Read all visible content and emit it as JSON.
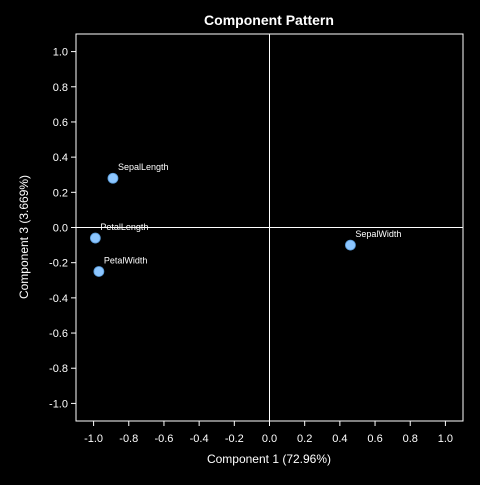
{
  "chart_data": {
    "type": "scatter",
    "title": "Component Pattern",
    "xlabel": "Component 1 (72.96%)",
    "ylabel": "Component 3 (3.669%)",
    "xlim": [
      -1.1,
      1.1
    ],
    "ylim": [
      -1.1,
      1.1
    ],
    "x_ticks": [
      -1.0,
      -0.8,
      -0.6,
      -0.4,
      -0.2,
      0.0,
      0.2,
      0.4,
      0.6,
      0.8,
      1.0
    ],
    "x_tick_labels": [
      "-1.0",
      "-0.8",
      "-0.6",
      "-0.4",
      "-0.2",
      "0.0",
      "0.2",
      "0.4",
      "0.6",
      "0.8",
      "1.0"
    ],
    "y_ticks": [
      1.0,
      0.8,
      0.6,
      0.4,
      0.2,
      0.0,
      -0.2,
      -0.4,
      -0.6,
      -0.8,
      -1.0
    ],
    "y_tick_labels": [
      "1.0",
      "0.8",
      "0.6",
      "0.4",
      "0.2",
      "0.0",
      "-0.2",
      "-0.4",
      "-0.6",
      "-0.8",
      "-1.0"
    ],
    "reference_lines": {
      "x": 0.0,
      "y": 0.0
    },
    "grid": false,
    "points": [
      {
        "label": "SepalLength",
        "x": -0.89,
        "y": 0.28
      },
      {
        "label": "PetalLength",
        "x": -0.99,
        "y": -0.06
      },
      {
        "label": "PetalWidth",
        "x": -0.97,
        "y": -0.25
      },
      {
        "label": "SepalWidth",
        "x": 0.46,
        "y": -0.1
      }
    ],
    "colors": {
      "background": "#000000",
      "foreground": "#ffffff",
      "marker": "#8cc6ff"
    }
  }
}
